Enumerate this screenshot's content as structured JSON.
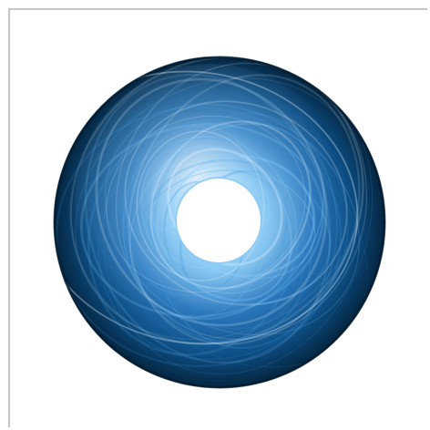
{
  "image": {
    "subject": "blue-fractal-disc-icon",
    "colors": {
      "deep": "#04253f",
      "mid": "#0d4f86",
      "bright": "#3f97d6",
      "glow": "#cfeeff",
      "background": "#ffffff",
      "frame": "#c6c6c6"
    }
  }
}
